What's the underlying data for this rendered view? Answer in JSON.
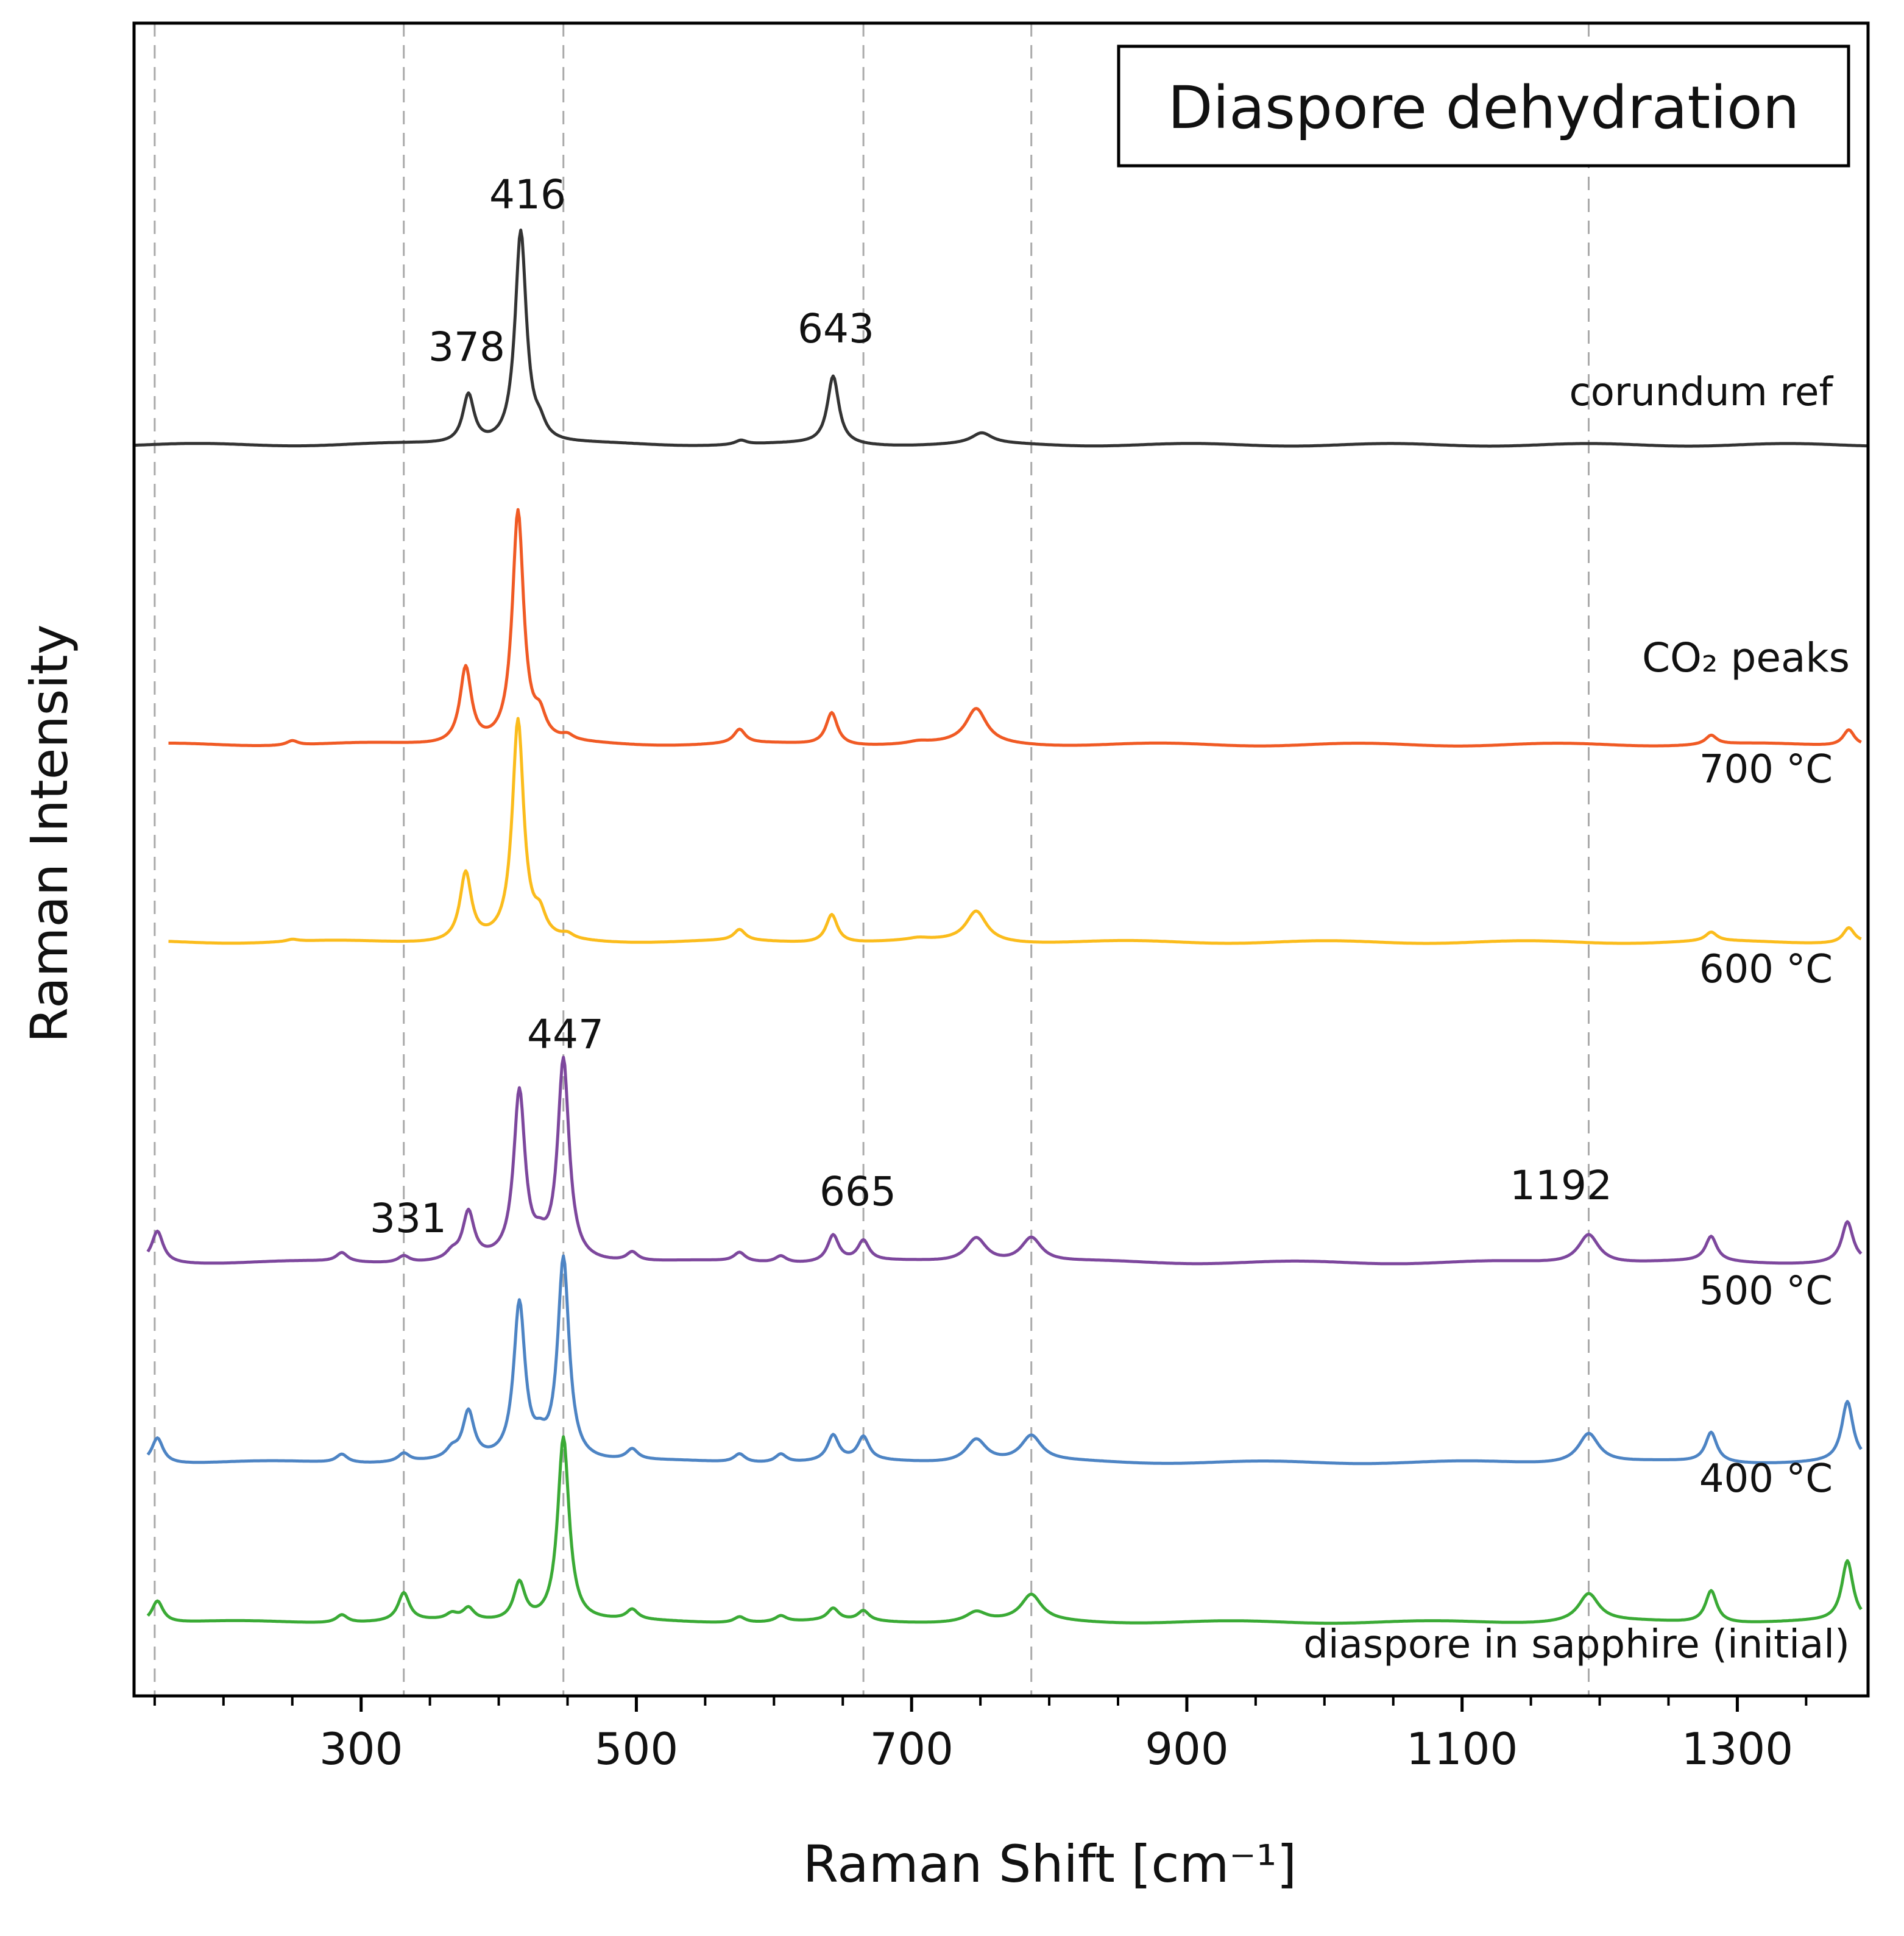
{
  "chart_data": {
    "type": "line",
    "title": "Diaspore dehydration",
    "xlabel": "Raman Shift [cm⁻¹]",
    "ylabel": "Raman Intensity",
    "xlim": [
      135,
      1395
    ],
    "x_ticks": [
      300,
      500,
      700,
      900,
      1100,
      1300
    ],
    "x_tick_labels": [
      "300",
      "500",
      "700",
      "900",
      "1100",
      "1300"
    ],
    "grid": false,
    "reference_lines_x": [
      150,
      331,
      447,
      665,
      787,
      1192
    ],
    "y_ticks_shown": false,
    "series": [
      {
        "name": "corundum ref",
        "color": "#333333",
        "xrange": [
          135,
          1395
        ],
        "peaks": [
          [
            378,
            0.23
          ],
          [
            416,
            1.0
          ],
          [
            430,
            0.06
          ],
          [
            576,
            0.02
          ],
          [
            643,
            0.32
          ],
          [
            751,
            0.05
          ]
        ]
      },
      {
        "name": "700 °C",
        "color": "#f05a24",
        "xrange": [
          160,
          1390
        ],
        "peaks": [
          [
            250,
            0.02
          ],
          [
            376,
            0.33
          ],
          [
            414,
            1.0
          ],
          [
            430,
            0.09
          ],
          [
            450,
            0.02
          ],
          [
            575,
            0.06
          ],
          [
            642,
            0.14
          ],
          [
            705,
            0.01
          ],
          [
            747,
            0.15
          ],
          [
            1281,
            0.04
          ],
          [
            1381,
            0.07
          ]
        ]
      },
      {
        "name": "600 °C",
        "color": "#fbbc1c",
        "xrange": [
          160,
          1390
        ],
        "peaks": [
          [
            250,
            0.01
          ],
          [
            376,
            0.31
          ],
          [
            414,
            1.0
          ],
          [
            430,
            0.09
          ],
          [
            450,
            0.02
          ],
          [
            575,
            0.05
          ],
          [
            642,
            0.13
          ],
          [
            705,
            0.01
          ],
          [
            747,
            0.14
          ],
          [
            1281,
            0.04
          ],
          [
            1381,
            0.07
          ]
        ]
      },
      {
        "name": "500 °C",
        "color": "#7d479d",
        "xrange": [
          145,
          1390
        ],
        "peaks": [
          [
            152,
            0.14
          ],
          [
            286,
            0.04
          ],
          [
            331,
            0.03
          ],
          [
            366,
            0.03
          ],
          [
            378,
            0.21
          ],
          [
            415,
            0.74
          ],
          [
            430,
            0.05
          ],
          [
            447,
            0.89
          ],
          [
            497,
            0.04
          ],
          [
            575,
            0.04
          ],
          [
            605,
            0.03
          ],
          [
            643,
            0.12
          ],
          [
            665,
            0.09
          ],
          [
            747,
            0.11
          ],
          [
            787,
            0.11
          ],
          [
            1192,
            0.13
          ],
          [
            1281,
            0.11
          ],
          [
            1380,
            0.18
          ]
        ]
      },
      {
        "name": "400 °C",
        "color": "#4d84c4",
        "xrange": [
          145,
          1390
        ],
        "peaks": [
          [
            152,
            0.12
          ],
          [
            286,
            0.04
          ],
          [
            331,
            0.04
          ],
          [
            366,
            0.04
          ],
          [
            378,
            0.22
          ],
          [
            415,
            0.73
          ],
          [
            430,
            0.06
          ],
          [
            447,
            0.95
          ],
          [
            497,
            0.05
          ],
          [
            575,
            0.04
          ],
          [
            605,
            0.04
          ],
          [
            643,
            0.12
          ],
          [
            665,
            0.11
          ],
          [
            747,
            0.11
          ],
          [
            787,
            0.12
          ],
          [
            1192,
            0.14
          ],
          [
            1281,
            0.14
          ],
          [
            1380,
            0.28
          ]
        ]
      },
      {
        "name": "diaspore in sapphire (initial)",
        "color": "#3aaa35",
        "xrange": [
          145,
          1390
        ],
        "peaks": [
          [
            152,
            0.11
          ],
          [
            286,
            0.04
          ],
          [
            331,
            0.14
          ],
          [
            366,
            0.03
          ],
          [
            378,
            0.06
          ],
          [
            415,
            0.19
          ],
          [
            447,
            0.92
          ],
          [
            497,
            0.05
          ],
          [
            575,
            0.03
          ],
          [
            605,
            0.03
          ],
          [
            643,
            0.06
          ],
          [
            665,
            0.05
          ],
          [
            747,
            0.05
          ],
          [
            787,
            0.13
          ],
          [
            1192,
            0.14
          ],
          [
            1281,
            0.16
          ],
          [
            1380,
            0.3
          ]
        ]
      }
    ],
    "annotations": [
      {
        "text": "416",
        "x": 416
      },
      {
        "text": "378",
        "x": 378
      },
      {
        "text": "643",
        "x": 643
      },
      {
        "text": "447",
        "x": 447
      },
      {
        "text": "331",
        "x": 331
      },
      {
        "text": "665",
        "x": 665
      },
      {
        "text": "1192",
        "x": 1192
      },
      {
        "text": "CO₂ peaks"
      }
    ]
  }
}
